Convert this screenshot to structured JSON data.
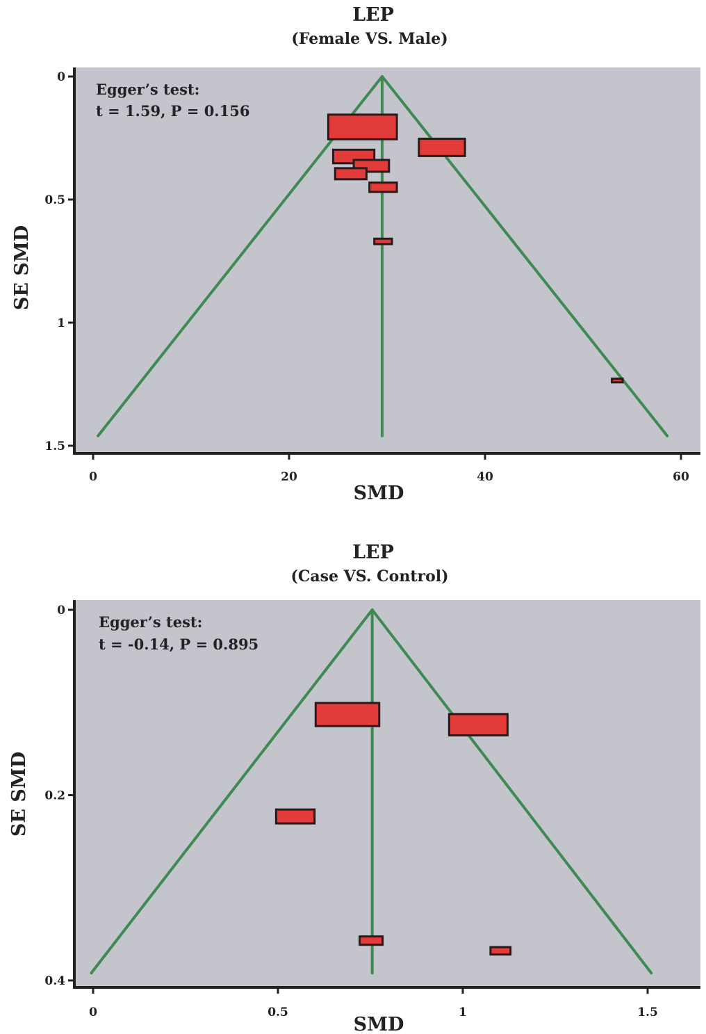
{
  "colors": {
    "plot_bg": "#c4c4cc",
    "funnel": "#3f8a52",
    "marker_fill": "#e33a3a",
    "marker_edge": "#2a1a1a",
    "axis": "#222222"
  },
  "chart_data": [
    {
      "type": "scatter",
      "subtype": "funnel-plot",
      "title": "LEP",
      "subtitle": "(Female VS. Male)",
      "xlabel": "SMD",
      "ylabel": "SE SMD",
      "xlim": [
        -1,
        61.5
      ],
      "ylim": [
        0,
        1.5
      ],
      "y_inverted": true,
      "xticks": [
        0,
        20,
        40,
        60
      ],
      "xtick_labels": [
        "0",
        "20",
        "40",
        "60"
      ],
      "yticks": [
        0,
        0.5,
        1,
        1.5
      ],
      "ytick_labels": [
        "0",
        "0.5",
        "1",
        "1.5"
      ],
      "annotation": [
        "Egger’s test:",
        "t = 1.59, P = 0.156"
      ],
      "pooled_smd": 29.5,
      "funnel_bottom_se": 1.46,
      "funnel_left_x": 0.5,
      "funnel_right_x": 58.6,
      "points": [
        {
          "x": 27.5,
          "y": 0.205,
          "w": 7.0,
          "h": 0.1
        },
        {
          "x": 35.6,
          "y": 0.288,
          "w": 4.7,
          "h": 0.07
        },
        {
          "x": 26.6,
          "y": 0.325,
          "w": 4.2,
          "h": 0.055
        },
        {
          "x": 28.4,
          "y": 0.363,
          "w": 3.6,
          "h": 0.048
        },
        {
          "x": 26.3,
          "y": 0.395,
          "w": 3.2,
          "h": 0.045
        },
        {
          "x": 29.6,
          "y": 0.45,
          "w": 2.8,
          "h": 0.038
        },
        {
          "x": 29.6,
          "y": 0.67,
          "w": 1.8,
          "h": 0.022
        },
        {
          "x": 53.5,
          "y": 1.235,
          "w": 1.1,
          "h": 0.015
        }
      ]
    },
    {
      "type": "scatter",
      "subtype": "funnel-plot",
      "title": "LEP",
      "subtitle": "(Case VS. Control)",
      "xlabel": "SMD",
      "ylabel": "SE SMD",
      "xlim": [
        -0.05,
        1.63
      ],
      "ylim": [
        0,
        0.4
      ],
      "y_inverted": true,
      "xticks": [
        0,
        0.5,
        1,
        1.5
      ],
      "xtick_labels": [
        "0",
        "0.5",
        "1",
        "1.5"
      ],
      "yticks": [
        0,
        0.2,
        0.4
      ],
      "ytick_labels": [
        "0",
        "0.2",
        "0.4"
      ],
      "annotation": [
        "Egger’s test:",
        "t = -0.14, P = 0.895"
      ],
      "pooled_smd": 0.755,
      "funnel_bottom_se": 0.392,
      "funnel_left_x": -0.005,
      "funnel_right_x": 1.51,
      "points": [
        {
          "x": 0.688,
          "y": 0.113,
          "w": 0.172,
          "h": 0.025
        },
        {
          "x": 1.042,
          "y": 0.124,
          "w": 0.158,
          "h": 0.023
        },
        {
          "x": 0.547,
          "y": 0.223,
          "w": 0.104,
          "h": 0.015
        },
        {
          "x": 0.752,
          "y": 0.357,
          "w": 0.062,
          "h": 0.009
        },
        {
          "x": 1.102,
          "y": 0.368,
          "w": 0.054,
          "h": 0.008
        }
      ]
    }
  ]
}
